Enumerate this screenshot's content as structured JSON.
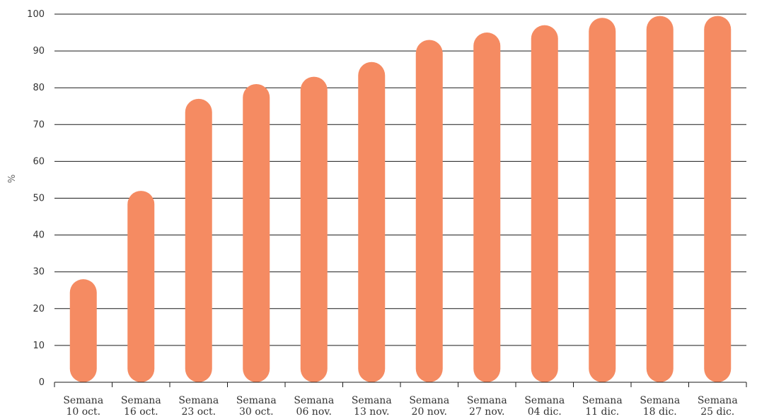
{
  "chart_data": {
    "type": "bar",
    "title": "",
    "xlabel": "",
    "ylabel": "%",
    "ylim": [
      0,
      100
    ],
    "yticks": [
      0,
      10,
      20,
      30,
      40,
      50,
      60,
      70,
      80,
      90,
      100
    ],
    "grid": true,
    "bar_color": "#F58B62",
    "categories": [
      [
        "Semana",
        "10 oct."
      ],
      [
        "Semana",
        "16 oct."
      ],
      [
        "Semana",
        "23 oct."
      ],
      [
        "Semana",
        "30 oct."
      ],
      [
        "Semana",
        "06 nov."
      ],
      [
        "Semana",
        "13 nov."
      ],
      [
        "Semana",
        "20 nov."
      ],
      [
        "Semana",
        "27 nov."
      ],
      [
        "Semana",
        "04 dic."
      ],
      [
        "Semana",
        "11 dic."
      ],
      [
        "Semana",
        "18 dic."
      ],
      [
        "Semana",
        "25 dic."
      ]
    ],
    "values": [
      28,
      52,
      77,
      81,
      83,
      87,
      93,
      95,
      97,
      99,
      99.5,
      99.5
    ]
  }
}
